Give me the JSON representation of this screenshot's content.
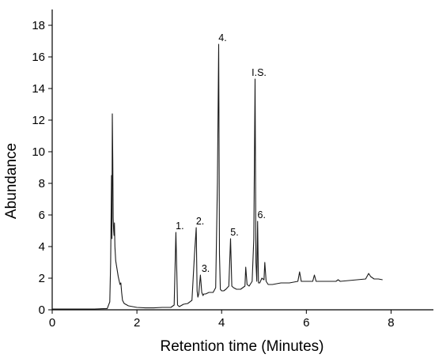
{
  "chart_data": {
    "type": "line",
    "xlabel": "Retention time (Minutes)",
    "ylabel": "Abundance",
    "xlim": [
      0,
      9
    ],
    "ylim": [
      0,
      19
    ],
    "xticks": [
      0,
      2,
      4,
      6,
      8
    ],
    "yticks": [
      0,
      2,
      4,
      6,
      8,
      10,
      12,
      14,
      16,
      18
    ],
    "grid": false,
    "series": [
      {
        "x": [
          0.0,
          0.5,
          1.0,
          1.3,
          1.36,
          1.38,
          1.4,
          1.41,
          1.42,
          1.43,
          1.44,
          1.45,
          1.46,
          1.47,
          1.48,
          1.5,
          1.53,
          1.56,
          1.6,
          1.62,
          1.64,
          1.66,
          1.7,
          1.8,
          1.9,
          2.0,
          2.2,
          2.4,
          2.6,
          2.8,
          2.88,
          2.92,
          2.94,
          2.96,
          3.0,
          3.1,
          3.2,
          3.3,
          3.36,
          3.4,
          3.42,
          3.44,
          3.46,
          3.5,
          3.53,
          3.56,
          3.58,
          3.62,
          3.7,
          3.8,
          3.86,
          3.9,
          3.93,
          3.95,
          3.97,
          4.0,
          4.05,
          4.1,
          4.17,
          4.21,
          4.24,
          4.28,
          4.35,
          4.45,
          4.55,
          4.57,
          4.6,
          4.65,
          4.72,
          4.76,
          4.79,
          4.81,
          4.83,
          4.85,
          4.87,
          4.9,
          4.95,
          5.0,
          5.02,
          5.05,
          5.1,
          5.2,
          5.4,
          5.6,
          5.8,
          5.84,
          5.88,
          6.0,
          6.15,
          6.19,
          6.23,
          6.4,
          6.7,
          6.75,
          6.8,
          7.0,
          7.2,
          7.4,
          7.47,
          7.52,
          7.6,
          7.7,
          7.8
        ],
        "y": [
          0.05,
          0.05,
          0.05,
          0.08,
          0.5,
          3.0,
          8.5,
          4.5,
          12.4,
          9.5,
          5.8,
          5.0,
          4.7,
          5.5,
          4.0,
          3.1,
          2.6,
          2.1,
          1.6,
          1.7,
          1.1,
          0.6,
          0.4,
          0.25,
          0.2,
          0.15,
          0.12,
          0.12,
          0.15,
          0.15,
          0.3,
          4.9,
          2.5,
          0.3,
          0.2,
          0.35,
          0.4,
          0.6,
          3.5,
          5.2,
          1.2,
          0.8,
          1.0,
          2.2,
          1.1,
          0.9,
          1.0,
          1.0,
          1.1,
          1.1,
          1.4,
          8.0,
          16.8,
          3.5,
          1.3,
          1.2,
          1.2,
          1.3,
          1.5,
          4.5,
          1.5,
          1.4,
          1.3,
          1.3,
          1.5,
          2.7,
          1.6,
          1.5,
          1.8,
          4.5,
          14.6,
          3.0,
          1.8,
          5.6,
          1.7,
          1.7,
          2.0,
          1.9,
          3.0,
          1.8,
          1.6,
          1.6,
          1.7,
          1.7,
          1.8,
          2.4,
          1.8,
          1.8,
          1.8,
          2.2,
          1.8,
          1.8,
          1.8,
          1.9,
          1.8,
          1.85,
          1.9,
          1.95,
          2.3,
          2.1,
          1.95,
          1.95,
          1.9
        ]
      }
    ],
    "annotations": [
      {
        "text": "1.",
        "x": 2.92,
        "y": 4.9
      },
      {
        "text": "2.",
        "x": 3.4,
        "y": 5.2
      },
      {
        "text": "3.",
        "x": 3.53,
        "y": 2.2
      },
      {
        "text": "4.",
        "x": 3.93,
        "y": 16.8
      },
      {
        "text": "5.",
        "x": 4.21,
        "y": 4.5
      },
      {
        "text": "I.S.",
        "x": 4.79,
        "y": 14.6
      },
      {
        "text": "6.",
        "x": 4.85,
        "y": 5.6
      }
    ]
  }
}
